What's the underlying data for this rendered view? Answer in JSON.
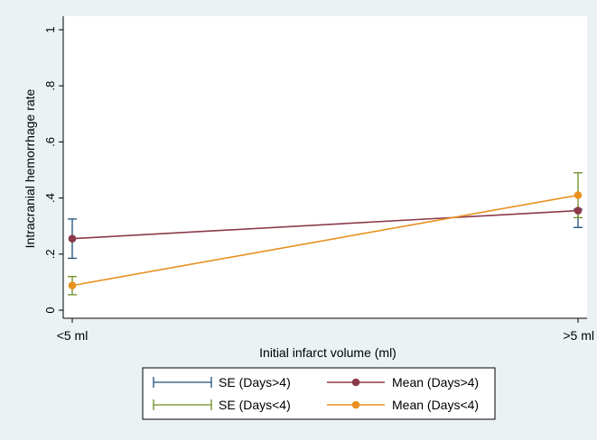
{
  "chart_data": {
    "type": "line",
    "title": "",
    "xlabel": "Initial infarct volume (ml)",
    "ylabel": "Intracranial hemorrhage rate",
    "categories": [
      "<5 ml",
      ">5 ml"
    ],
    "ylim": [
      0,
      1
    ],
    "yticks": [
      0,
      0.2,
      0.4,
      0.6,
      0.8,
      1
    ],
    "ytick_labels": [
      "0",
      ".2",
      ".4",
      ".6",
      ".8",
      "1"
    ],
    "grid": false,
    "legend_position": "bottom",
    "series": [
      {
        "name": "Mean (Days>4)",
        "values": [
          0.255,
          0.355
        ],
        "color": "#8b3a4a",
        "marker": "circle",
        "error_bar": {
          "name": "SE (Days>4)",
          "color": "#1f4e79",
          "lower": [
            0.185,
            0.295
          ],
          "upper": [
            0.325,
            0.36
          ]
        }
      },
      {
        "name": "Mean (Days<4)",
        "values": [
          0.088,
          0.41
        ],
        "color": "#e8901f",
        "marker": "circle",
        "error_bar": {
          "name": "SE (Days<4)",
          "color": "#6b8e23",
          "lower": [
            0.055,
            0.33
          ],
          "upper": [
            0.12,
            0.49
          ]
        }
      }
    ],
    "legend": [
      {
        "label": "SE (Days>4)",
        "kind": "errorbar",
        "color": "#1f4e79"
      },
      {
        "label": "Mean (Days>4)",
        "kind": "line-marker",
        "color": "#8b3a4a"
      },
      {
        "label": "SE (Days<4)",
        "kind": "errorbar",
        "color": "#6b8e23"
      },
      {
        "label": "Mean (Days<4)",
        "kind": "line-marker",
        "color": "#e8901f"
      }
    ]
  },
  "colors": {
    "background": "#eaf2f3",
    "plot_area": "#ffffff",
    "axis": "#000000"
  }
}
